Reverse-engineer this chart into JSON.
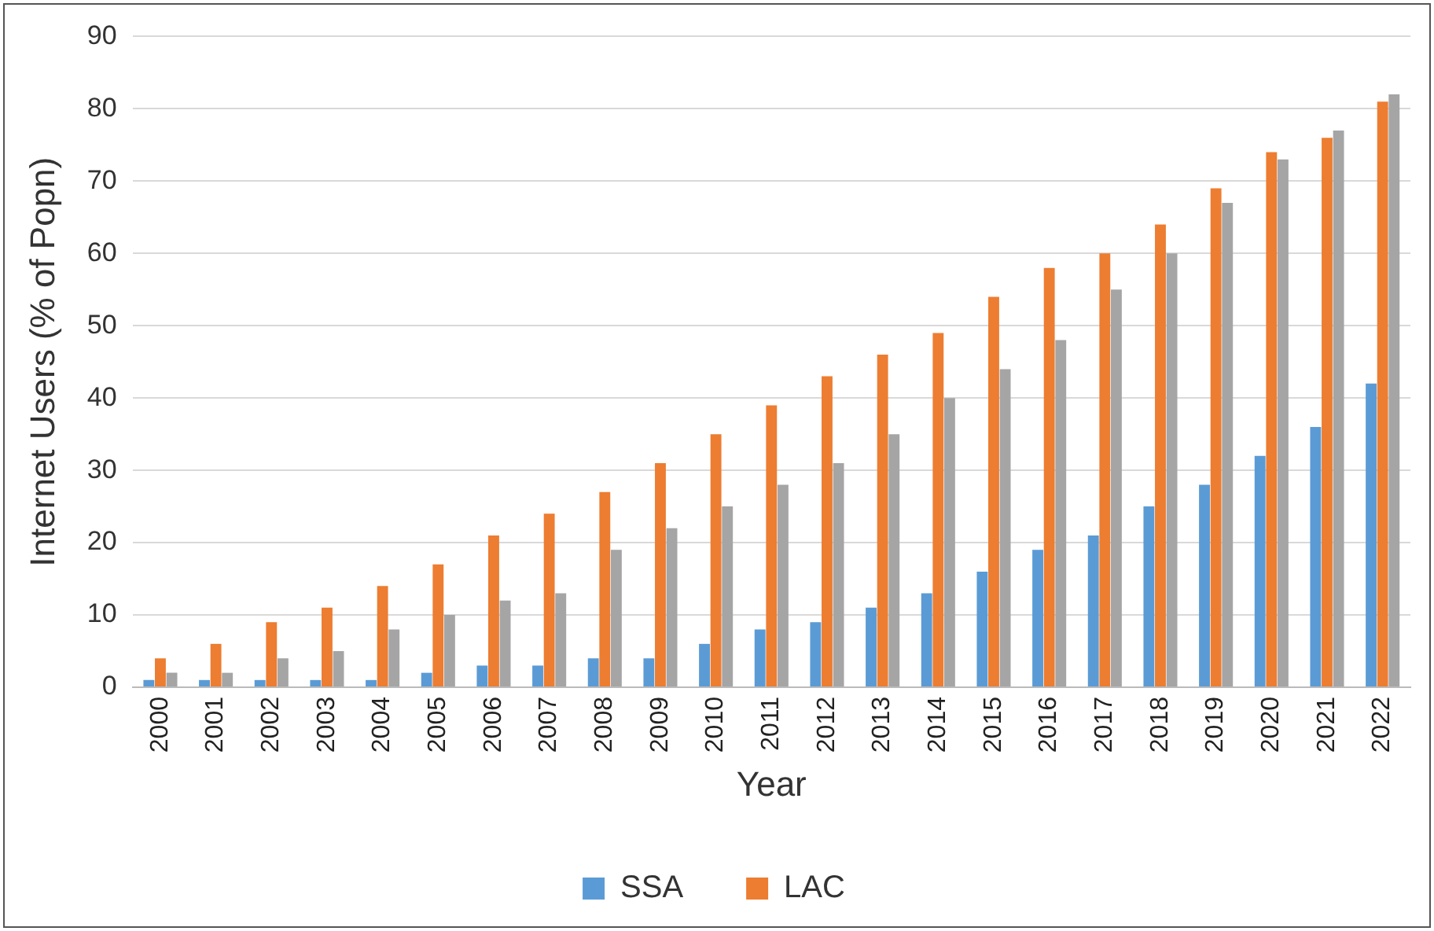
{
  "chart_data": {
    "type": "bar",
    "xlabel": "Year",
    "ylabel": "Internet Users (% of Popn)",
    "categories": [
      "2000",
      "2001",
      "2002",
      "2003",
      "2004",
      "2005",
      "2006",
      "2007",
      "2008",
      "2009",
      "2010",
      "2011",
      "2012",
      "2013",
      "2014",
      "2015",
      "2016",
      "2017",
      "2018",
      "2019",
      "2020",
      "2021",
      "2022"
    ],
    "series": [
      {
        "name": "SSA",
        "color": "#5b9bd5",
        "values": [
          1,
          1,
          1,
          1,
          1,
          2,
          3,
          3,
          4,
          4,
          6,
          8,
          9,
          11,
          13,
          16,
          19,
          21,
          25,
          28,
          32,
          36,
          42
        ]
      },
      {
        "name": "LAC",
        "color": "#ed7d31",
        "values": [
          4,
          6,
          9,
          11,
          14,
          17,
          21,
          24,
          27,
          31,
          35,
          39,
          43,
          46,
          49,
          54,
          58,
          60,
          64,
          69,
          74,
          76,
          81
        ]
      },
      {
        "color": "#a5a5a5",
        "values": [
          2,
          2,
          4,
          5,
          8,
          10,
          12,
          13,
          19,
          22,
          25,
          28,
          31,
          35,
          40,
          44,
          48,
          55,
          60,
          67,
          73,
          77,
          82
        ]
      }
    ],
    "ylim": [
      0,
      90
    ],
    "yticks": [
      0,
      10,
      20,
      30,
      40,
      50,
      60,
      70,
      80,
      90
    ],
    "grid": "y",
    "legend": "bottom"
  }
}
